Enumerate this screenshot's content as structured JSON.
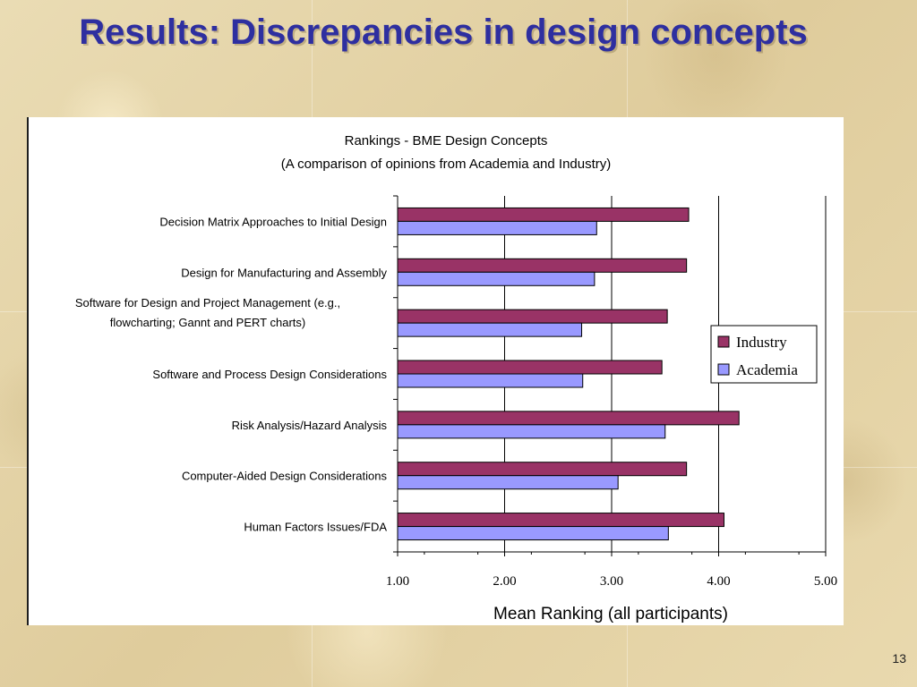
{
  "slide": {
    "title": "Results: Discrepancies in design concepts",
    "page_number": "13"
  },
  "chart_data": {
    "type": "bar",
    "orientation": "horizontal",
    "title": "Rankings - BME Design Concepts",
    "subtitle": "(A comparison of opinions from Academia and Industry)",
    "xlabel": "Mean Ranking (all participants)",
    "ylabel": "",
    "xlim": [
      1.0,
      5.0
    ],
    "xticks": [
      "1.00",
      "2.00",
      "3.00",
      "4.00",
      "5.00"
    ],
    "grid": true,
    "legend_position": "right",
    "categories": [
      [
        "Decision Matrix Approaches to Initial Design"
      ],
      [
        "Design for Manufacturing and Assembly"
      ],
      [
        "Software for Design and Project Management (e.g.,",
        "flowcharting; Gannt and PERT charts)"
      ],
      [
        "Software and Process Design Considerations"
      ],
      [
        "Risk Analysis/Hazard Analysis"
      ],
      [
        "Computer-Aided Design Considerations"
      ],
      [
        "Human Factors Issues/FDA"
      ]
    ],
    "series": [
      {
        "name": "Industry",
        "color": "#993366",
        "values": [
          3.72,
          3.7,
          3.52,
          3.47,
          4.19,
          3.7,
          4.05
        ]
      },
      {
        "name": "Academia",
        "color": "#9999ff",
        "values": [
          2.86,
          2.84,
          2.72,
          2.73,
          3.5,
          3.06,
          3.53
        ]
      }
    ]
  }
}
